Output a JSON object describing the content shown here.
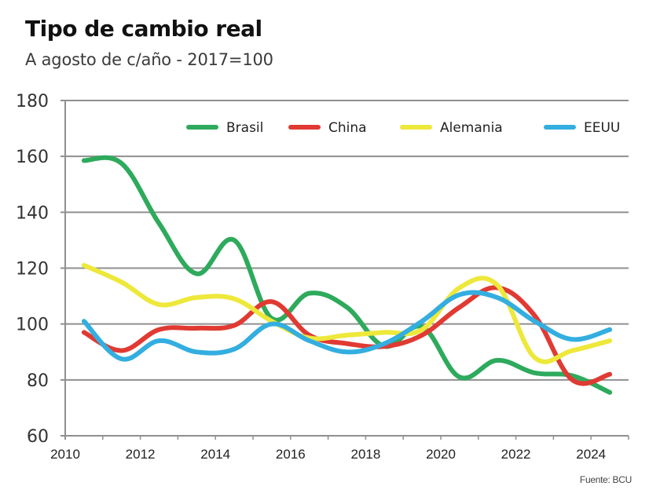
{
  "header": {
    "title": "Tipo de cambio real",
    "subtitle": "A agosto de c/año - 2017=100"
  },
  "footer": {
    "source": "Fuente: BCU"
  },
  "chart_data": {
    "type": "line",
    "title": "Tipo de cambio real",
    "subtitle": "A agosto de c/año - 2017=100",
    "xlabel": "",
    "ylabel": "",
    "ylim": [
      60,
      180
    ],
    "xlim": [
      2010,
      2025
    ],
    "yticks": [
      60,
      80,
      100,
      120,
      140,
      160,
      180
    ],
    "ytick_labels": [
      "60",
      "80",
      "100",
      "120",
      "140",
      "160",
      "180"
    ],
    "xticks": [
      2010,
      2012,
      2014,
      2016,
      2018,
      2020,
      2022,
      2024
    ],
    "xtick_labels": [
      "2010",
      "2012",
      "2014",
      "2016",
      "2018",
      "2020",
      "2022",
      "2024"
    ],
    "grid": "horizontal",
    "legend_position": "top-right",
    "x": [
      2010.5,
      2011.5,
      2012.5,
      2013.5,
      2014.5,
      2015.5,
      2016.5,
      2017.5,
      2018.5,
      2019.5,
      2020.5,
      2021.5,
      2022.5,
      2023.5,
      2024.5
    ],
    "series": [
      {
        "name": "Brasil",
        "color": "#2eaa5c",
        "values": [
          158.5,
          157.5,
          136,
          118,
          130,
          102,
          111,
          106,
          92,
          99,
          81,
          87,
          82.5,
          81.5,
          75.5
        ]
      },
      {
        "name": "China",
        "color": "#e03a33",
        "values": [
          97,
          90.5,
          98,
          98.5,
          99.5,
          108,
          96,
          93,
          92,
          96,
          106,
          113,
          103,
          80,
          82
        ]
      },
      {
        "name": "Alemania",
        "color": "#ede83a",
        "values": [
          121,
          115,
          107,
          109.5,
          109,
          101,
          95,
          96,
          97,
          98,
          113,
          114,
          88,
          90.5,
          94
        ]
      },
      {
        "name": "EEUU",
        "color": "#33aee0",
        "values": [
          101,
          87.5,
          94,
          90,
          91,
          100,
          94,
          90,
          93,
          101,
          110.5,
          109.5,
          101,
          94.5,
          98
        ]
      }
    ]
  }
}
